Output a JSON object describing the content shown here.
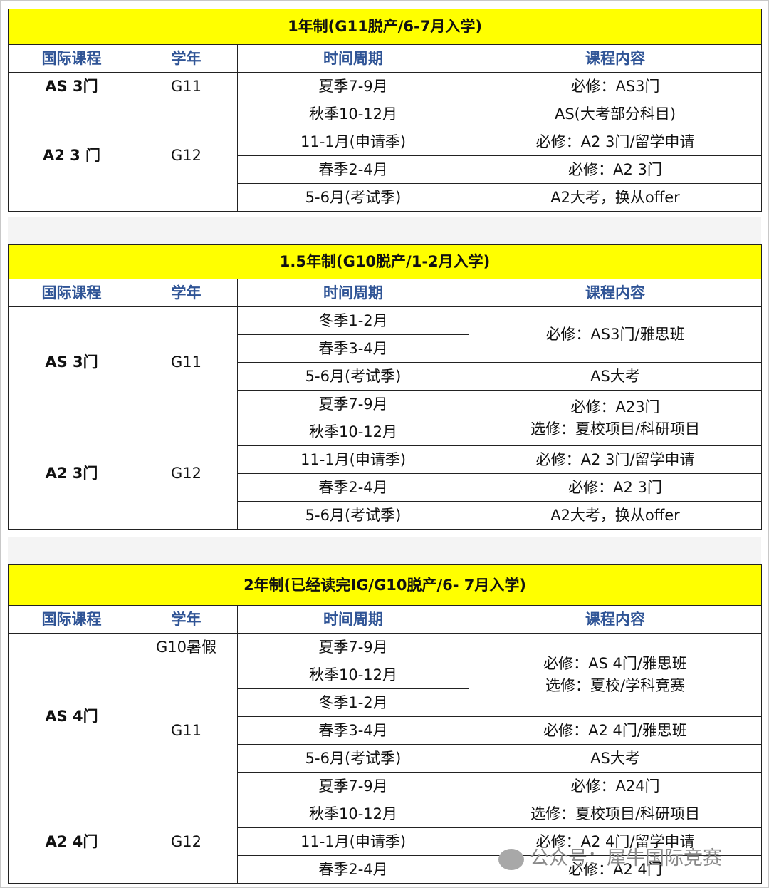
{
  "headers": [
    "国际课程",
    "学年",
    "时间周期",
    "课程内容"
  ],
  "tables": [
    {
      "title": "1年制(G11脱产/6-7月入学)",
      "rows": [
        [
          {
            "t": "AS 3门",
            "rs": 1,
            "c": "course"
          },
          {
            "t": "G11",
            "rs": 1
          },
          {
            "t": "夏季7-9月",
            "rs": 1
          },
          {
            "t": "必修：AS3门",
            "rs": 1
          }
        ],
        [
          {
            "t": "A2 3 门",
            "rs": 4,
            "c": "course"
          },
          {
            "t": "G12",
            "rs": 4
          },
          {
            "t": "秋季10-12月",
            "rs": 1
          },
          {
            "t": "AS(大考部分科目)",
            "rs": 1
          }
        ],
        [
          {
            "t": "11-1月(申请季)",
            "rs": 1
          },
          {
            "t": "必修：A2 3门/留学申请",
            "rs": 1
          }
        ],
        [
          {
            "t": "春季2-4月",
            "rs": 1
          },
          {
            "t": "必修：A2 3门",
            "rs": 1
          }
        ],
        [
          {
            "t": "5-6月(考试季)",
            "rs": 1
          },
          {
            "t": "A2大考，换从offer",
            "rs": 1
          }
        ]
      ]
    },
    {
      "title": "1.5年制(G10脱产/1-2月入学)",
      "rows": [
        [
          {
            "t": "AS 3门",
            "rs": 4,
            "c": "course"
          },
          {
            "t": "G11",
            "rs": 4
          },
          {
            "t": "冬季1-2月",
            "rs": 1
          },
          {
            "t": "必修：AS3门/雅思班",
            "rs": 2
          }
        ],
        [
          {
            "t": "春季3-4月",
            "rs": 1
          }
        ],
        [
          {
            "t": "5-6月(考试季)",
            "rs": 1
          },
          {
            "t": "AS大考",
            "rs": 1
          }
        ],
        [
          {
            "t": "夏季7-9月",
            "rs": 1
          },
          {
            "t": "必修：A23门",
            "t2": "选修：夏校项目/科研项目",
            "rs": 2
          }
        ],
        [
          {
            "t": "A2 3门",
            "rs": 4,
            "c": "course"
          },
          {
            "t": "G12",
            "rs": 4
          },
          {
            "t": "秋季10-12月",
            "rs": 1
          }
        ],
        [
          {
            "t": "11-1月(申请季)",
            "rs": 1
          },
          {
            "t": "必修：A2 3门/留学申请",
            "rs": 1
          }
        ],
        [
          {
            "t": "春季2-4月",
            "rs": 1
          },
          {
            "t": "必修：A2 3门",
            "rs": 1
          }
        ],
        [
          {
            "t": "5-6月(考试季)",
            "rs": 1
          },
          {
            "t": "A2大考，换从offer",
            "rs": 1
          }
        ]
      ]
    },
    {
      "title": "2年制(已经读完IG/G10脱产/6- 7月入学)",
      "rows": [
        [
          {
            "t": "AS 4门",
            "rs": 6,
            "c": "course"
          },
          {
            "t": "G10暑假",
            "rs": 1
          },
          {
            "t": "夏季7-9月",
            "rs": 1
          },
          {
            "t": "必修：AS 4门/雅思班",
            "t2": "选修：夏校/学科竞赛",
            "rs": 3
          }
        ],
        [
          {
            "t": "G11",
            "rs": 5
          },
          {
            "t": "秋季10-12月",
            "rs": 1
          }
        ],
        [
          {
            "t": "冬季1-2月",
            "rs": 1
          }
        ],
        [
          {
            "t": "春季3-4月",
            "rs": 1
          },
          {
            "t": "必修：A2  4门/雅思班",
            "rs": 1
          }
        ],
        [
          {
            "t": "5-6月(考试季)",
            "rs": 1
          },
          {
            "t": "AS大考",
            "rs": 1
          }
        ],
        [
          {
            "t": "夏季7-9月",
            "rs": 1
          },
          {
            "t": "必修：A24门",
            "rs": 1
          }
        ],
        [
          {
            "t": "A2 4门",
            "rs": 3,
            "c": "course"
          },
          {
            "t": "G12",
            "rs": 3
          },
          {
            "t": "秋季10-12月",
            "rs": 1
          },
          {
            "t": "选修：夏校项目/科研项目",
            "rs": 1
          }
        ],
        [
          {
            "t": "11-1月(申请季)",
            "rs": 1
          },
          {
            "t": "必修：A2  4门/留学申请",
            "rs": 1
          }
        ],
        [
          {
            "t": "春季2-4月",
            "rs": 1
          },
          {
            "t": "必修：A2  4门",
            "rs": 1
          }
        ]
      ]
    }
  ],
  "watermark": "公众号：犀牛国际竞赛",
  "colors": {
    "title_bg": "#ffff00",
    "header_text": "#2f5496"
  }
}
